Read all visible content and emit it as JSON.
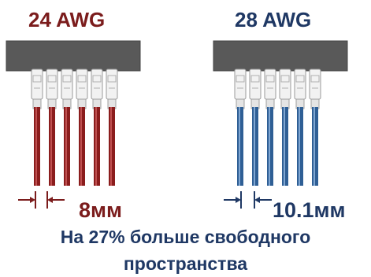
{
  "left_panel": {
    "gauge": "24 AWG",
    "spacing": "8мм",
    "wire_color": "#8b1d1d",
    "wire_highlight": "#c05252",
    "wire_count": 6
  },
  "right_panel": {
    "gauge": "28 AWG",
    "spacing": "10.1мм",
    "wire_color": "#2f5f95",
    "wire_highlight": "#7fa6d2",
    "wire_count": 6
  },
  "caption": {
    "line1": "На 27% больше свободного",
    "line2": "пространства"
  },
  "colors": {
    "heading": "#1f3864",
    "left_accent": "#7b1c1c",
    "connector": "#595959",
    "dimension_marker": "#1f3864"
  }
}
